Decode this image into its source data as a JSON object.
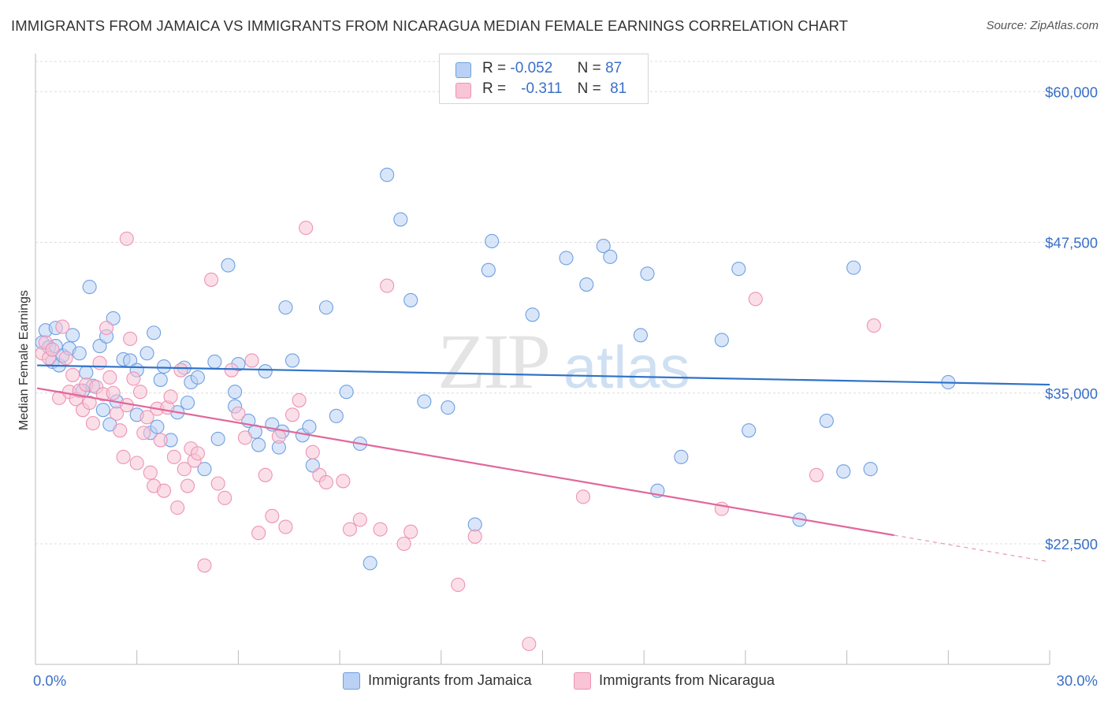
{
  "chart_data": {
    "type": "scatter",
    "title": "IMMIGRANTS FROM JAMAICA VS IMMIGRANTS FROM NICARAGUA MEDIAN FEMALE EARNINGS CORRELATION CHART",
    "source": "Source: ZipAtlas.com",
    "xlabel": "",
    "ylabel": "Median Female Earnings",
    "xlim": [
      0,
      30
    ],
    "ylim": [
      12500,
      62500
    ],
    "x_tick_labels": [
      "0.0%",
      "30.0%"
    ],
    "y_ticks": [
      22500,
      35000,
      47500,
      60000
    ],
    "y_tick_labels": [
      "$22,500",
      "$35,000",
      "$47,500",
      "$60,000"
    ],
    "watermark": {
      "zip": "ZIP",
      "atlas": "atlas"
    },
    "legend": {
      "r_label": "R =",
      "n_label": "N =",
      "rows": [
        {
          "r": "-0.052",
          "n": "87"
        },
        {
          "r": "-0.311",
          "n": "81"
        }
      ]
    },
    "series": [
      {
        "name": "Immigrants from Jamaica",
        "color": "#6fa0e0",
        "fill": "#b9d1f5",
        "line_color": "#2f72c8",
        "trend": {
          "x0": 0.05,
          "y0": 37300,
          "x1": 30,
          "y1": 35700,
          "dash_from": null
        },
        "points": [
          [
            0.2,
            39200
          ],
          [
            0.3,
            40200
          ],
          [
            0.4,
            38800
          ],
          [
            0.5,
            37600
          ],
          [
            0.6,
            38900
          ],
          [
            0.7,
            37300
          ],
          [
            0.8,
            38100
          ],
          [
            1.0,
            38700
          ],
          [
            1.1,
            39800
          ],
          [
            1.3,
            38300
          ],
          [
            1.5,
            36700
          ],
          [
            1.6,
            43800
          ],
          [
            1.7,
            35600
          ],
          [
            1.9,
            38900
          ],
          [
            2.1,
            39700
          ],
          [
            2.3,
            41200
          ],
          [
            2.4,
            34300
          ],
          [
            2.6,
            37800
          ],
          [
            2.8,
            37700
          ],
          [
            3.0,
            33200
          ],
          [
            3.3,
            38300
          ],
          [
            3.4,
            31700
          ],
          [
            3.5,
            40000
          ],
          [
            3.7,
            36100
          ],
          [
            3.8,
            37200
          ],
          [
            4.0,
            31100
          ],
          [
            4.2,
            33400
          ],
          [
            4.4,
            37100
          ],
          [
            4.6,
            35900
          ],
          [
            4.8,
            36300
          ],
          [
            5.0,
            28700
          ],
          [
            5.3,
            37600
          ],
          [
            5.4,
            31200
          ],
          [
            5.7,
            45600
          ],
          [
            5.9,
            35100
          ],
          [
            6.0,
            37400
          ],
          [
            6.3,
            32700
          ],
          [
            6.6,
            30700
          ],
          [
            6.8,
            36800
          ],
          [
            7.0,
            32400
          ],
          [
            7.2,
            30500
          ],
          [
            7.4,
            42100
          ],
          [
            7.6,
            37700
          ],
          [
            7.9,
            31500
          ],
          [
            8.2,
            29000
          ],
          [
            8.6,
            42100
          ],
          [
            8.9,
            33100
          ],
          [
            9.2,
            35100
          ],
          [
            9.6,
            30800
          ],
          [
            9.9,
            20900
          ],
          [
            10.4,
            53100
          ],
          [
            10.8,
            49400
          ],
          [
            11.1,
            42700
          ],
          [
            11.5,
            34300
          ],
          [
            12.2,
            33800
          ],
          [
            13.0,
            24100
          ],
          [
            13.4,
            45200
          ],
          [
            13.5,
            47600
          ],
          [
            14.7,
            41500
          ],
          [
            15.7,
            46200
          ],
          [
            16.3,
            44000
          ],
          [
            16.8,
            47200
          ],
          [
            17.0,
            46300
          ],
          [
            17.9,
            39800
          ],
          [
            18.1,
            44900
          ],
          [
            18.4,
            26900
          ],
          [
            19.1,
            29700
          ],
          [
            20.3,
            39400
          ],
          [
            20.8,
            45300
          ],
          [
            21.1,
            31900
          ],
          [
            22.6,
            24500
          ],
          [
            23.4,
            32700
          ],
          [
            23.9,
            28500
          ],
          [
            24.2,
            45400
          ],
          [
            24.7,
            28700
          ],
          [
            27.0,
            35900
          ],
          [
            3.0,
            36900
          ],
          [
            2.2,
            32400
          ],
          [
            0.6,
            40400
          ],
          [
            1.4,
            35200
          ],
          [
            4.5,
            34200
          ],
          [
            5.9,
            33900
          ],
          [
            7.3,
            31800
          ],
          [
            8.1,
            32200
          ],
          [
            6.5,
            31800
          ],
          [
            3.6,
            32200
          ],
          [
            2.0,
            33600
          ]
        ]
      },
      {
        "name": "Immigrants from Nicaragua",
        "color": "#ee93b5",
        "fill": "#f8c4d6",
        "line_color": "#e0689a",
        "trend": {
          "x0": 0.05,
          "y0": 35400,
          "x1": 30,
          "y1": 21000,
          "dash_from": 25.4
        },
        "points": [
          [
            0.2,
            38300
          ],
          [
            0.3,
            39200
          ],
          [
            0.4,
            37900
          ],
          [
            0.5,
            38600
          ],
          [
            0.7,
            34600
          ],
          [
            0.8,
            40500
          ],
          [
            0.9,
            37900
          ],
          [
            1.0,
            35100
          ],
          [
            1.1,
            36500
          ],
          [
            1.2,
            34500
          ],
          [
            1.3,
            35200
          ],
          [
            1.4,
            33600
          ],
          [
            1.5,
            35700
          ],
          [
            1.6,
            34200
          ],
          [
            1.7,
            32500
          ],
          [
            1.8,
            35500
          ],
          [
            1.9,
            37500
          ],
          [
            2.0,
            34900
          ],
          [
            2.1,
            40400
          ],
          [
            2.2,
            36300
          ],
          [
            2.3,
            35000
          ],
          [
            2.4,
            33300
          ],
          [
            2.5,
            31900
          ],
          [
            2.6,
            29700
          ],
          [
            2.7,
            34000
          ],
          [
            2.8,
            39500
          ],
          [
            2.9,
            36200
          ],
          [
            3.0,
            29200
          ],
          [
            3.1,
            35100
          ],
          [
            3.2,
            31700
          ],
          [
            3.3,
            33000
          ],
          [
            3.4,
            28400
          ],
          [
            3.5,
            27300
          ],
          [
            3.6,
            33700
          ],
          [
            3.7,
            31100
          ],
          [
            3.8,
            26900
          ],
          [
            3.9,
            33800
          ],
          [
            4.0,
            34700
          ],
          [
            4.1,
            29700
          ],
          [
            4.2,
            25500
          ],
          [
            4.3,
            36900
          ],
          [
            4.4,
            28700
          ],
          [
            4.5,
            27300
          ],
          [
            4.6,
            30400
          ],
          [
            4.7,
            29400
          ],
          [
            4.8,
            30000
          ],
          [
            5.0,
            20700
          ],
          [
            5.2,
            44400
          ],
          [
            5.4,
            27500
          ],
          [
            5.6,
            26300
          ],
          [
            5.8,
            36900
          ],
          [
            6.0,
            33300
          ],
          [
            6.2,
            31300
          ],
          [
            6.4,
            37700
          ],
          [
            6.6,
            23400
          ],
          [
            6.8,
            28200
          ],
          [
            7.0,
            24800
          ],
          [
            7.2,
            31400
          ],
          [
            7.4,
            23900
          ],
          [
            7.6,
            33200
          ],
          [
            7.8,
            34400
          ],
          [
            8.0,
            48700
          ],
          [
            8.2,
            30100
          ],
          [
            8.4,
            28200
          ],
          [
            8.6,
            27600
          ],
          [
            9.1,
            27700
          ],
          [
            9.3,
            23700
          ],
          [
            9.6,
            24500
          ],
          [
            10.2,
            23700
          ],
          [
            10.4,
            43900
          ],
          [
            10.9,
            22500
          ],
          [
            11.1,
            23500
          ],
          [
            12.5,
            19100
          ],
          [
            13.0,
            23100
          ],
          [
            14.6,
            14200
          ],
          [
            16.2,
            26400
          ],
          [
            20.3,
            25400
          ],
          [
            21.3,
            42800
          ],
          [
            23.1,
            28200
          ],
          [
            24.8,
            40600
          ],
          [
            2.7,
            47800
          ]
        ]
      }
    ]
  }
}
